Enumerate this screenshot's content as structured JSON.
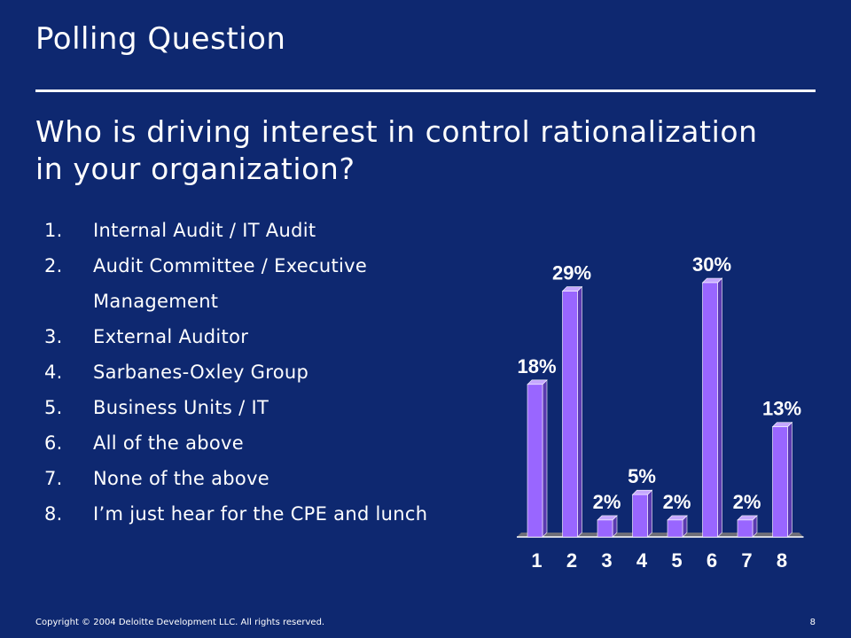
{
  "slide": {
    "title": "Polling Question",
    "question": "Who is driving interest in control rationalization in your organization?",
    "options": [
      {
        "num": "1.",
        "text": "Internal Audit / IT Audit"
      },
      {
        "num": "2.",
        "text": "Audit Committee / Executive Management"
      },
      {
        "num": "3.",
        "text": "External Auditor"
      },
      {
        "num": "4.",
        "text": "Sarbanes-Oxley Group"
      },
      {
        "num": "5.",
        "text": "Business Units / IT"
      },
      {
        "num": "6.",
        "text": "All of the above"
      },
      {
        "num": "7.",
        "text": "None of the above"
      },
      {
        "num": "8.",
        "text": "I’m just hear for the CPE and lunch"
      }
    ],
    "footer": "Copyright © 2004 Deloitte Development LLC. All rights reserved.",
    "page_number": "8"
  },
  "colors": {
    "background": "#0e2870",
    "bar_front": "#9966ff",
    "bar_top": "#c6a8ff",
    "bar_side": "#5a3ab0",
    "floor": "#6e6e78"
  },
  "chart_data": {
    "type": "bar",
    "categories": [
      "1",
      "2",
      "3",
      "4",
      "5",
      "6",
      "7",
      "8"
    ],
    "values": [
      18,
      29,
      2,
      5,
      2,
      30,
      2,
      13
    ],
    "data_labels": [
      "18%",
      "29%",
      "2%",
      "5%",
      "2%",
      "30%",
      "2%",
      "13%"
    ],
    "ylim": [
      0,
      30
    ],
    "grid": false,
    "legend": "none"
  }
}
